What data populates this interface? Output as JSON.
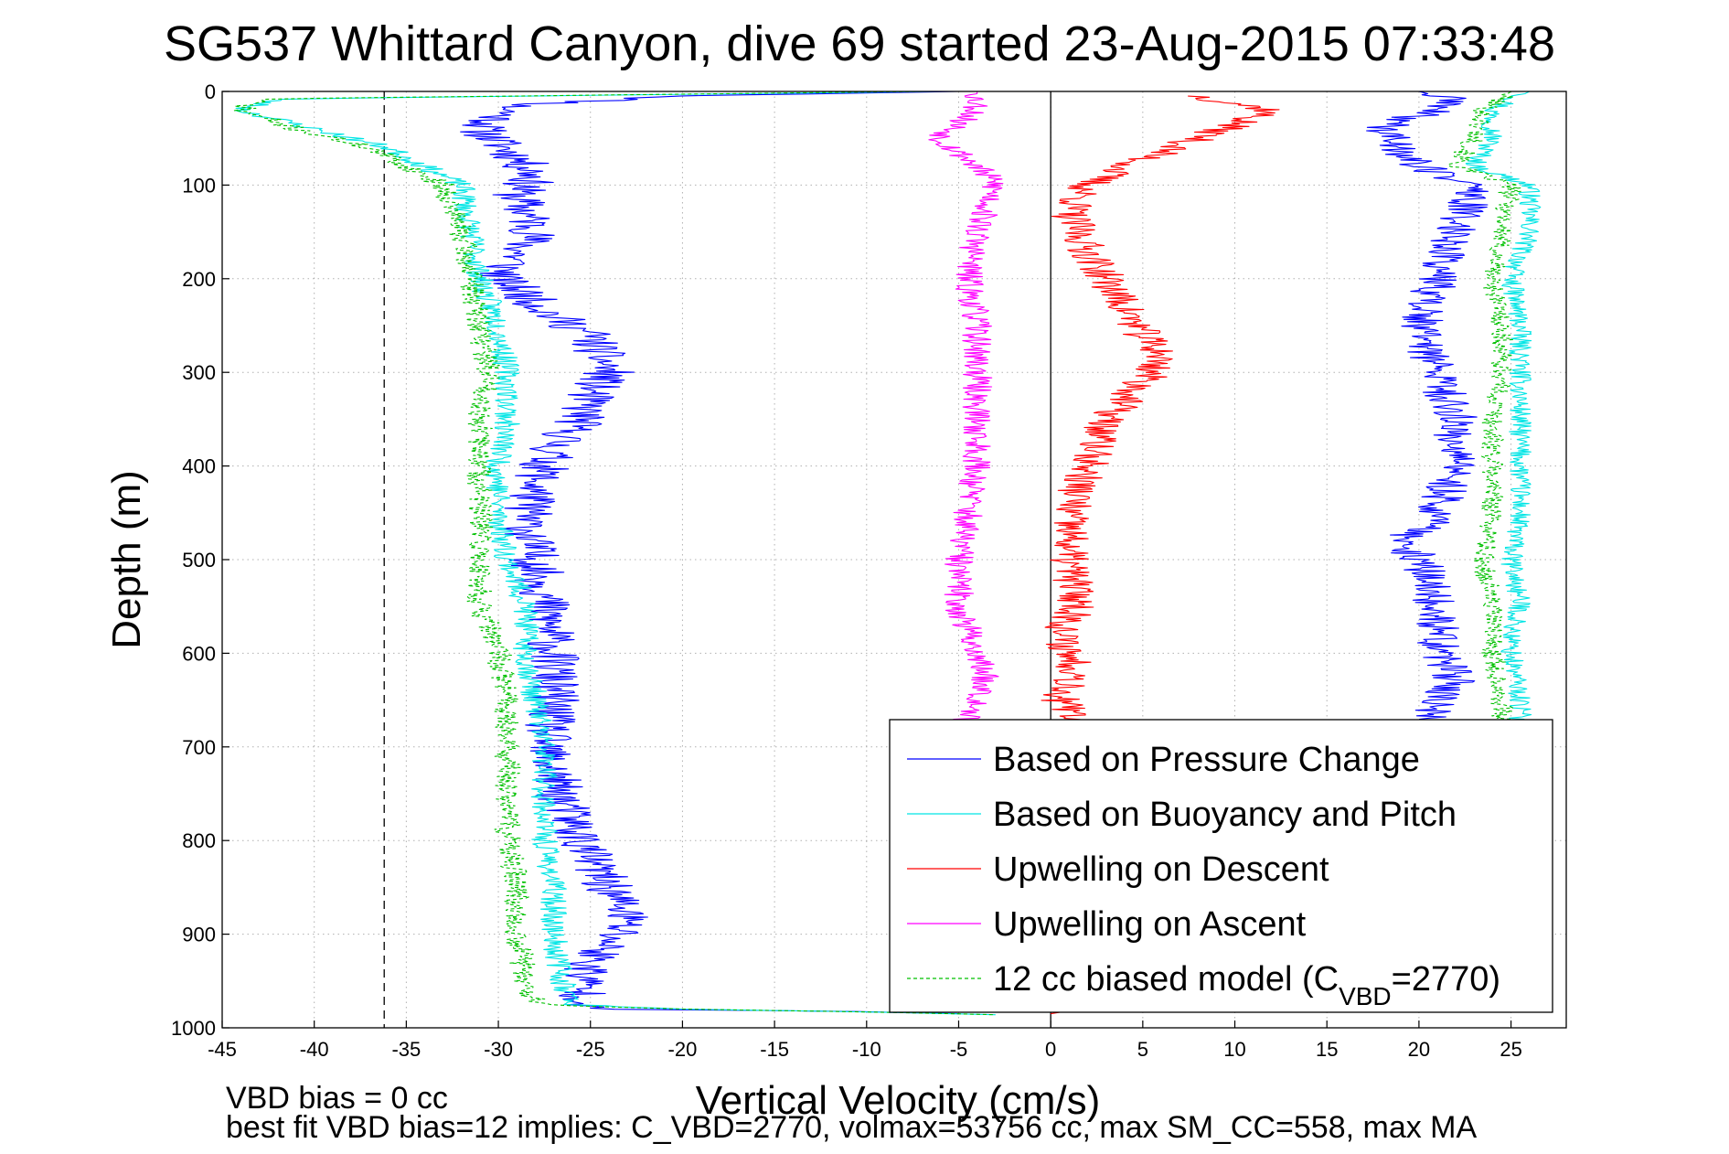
{
  "chart_data": {
    "type": "line",
    "title": "SG537 Whittard Canyon, dive 69 started 23-Aug-2015 07:33:48",
    "xlabel": "Vertical Velocity (cm/s)",
    "ylabel": "Depth (m)",
    "xlim": [
      -45,
      28
    ],
    "ylim": [
      0,
      1000
    ],
    "y_reversed": true,
    "grid": true,
    "xticks": [
      -45,
      -40,
      -35,
      -30,
      -25,
      -20,
      -15,
      -10,
      -5,
      0,
      5,
      10,
      15,
      20,
      25
    ],
    "yticks": [
      0,
      100,
      200,
      300,
      400,
      500,
      600,
      700,
      800,
      900,
      1000
    ],
    "reference_lines": [
      {
        "orientation": "vertical",
        "x": 0,
        "style": "solid",
        "color": "#000000"
      },
      {
        "orientation": "vertical",
        "x": -36.2,
        "style": "dashed",
        "color": "#000000"
      }
    ],
    "legend_position": "bottom-right",
    "series": [
      {
        "name": "Based on Pressure Change",
        "color": "#0000ff",
        "style": "solid",
        "noise": 1.4,
        "seed": 11,
        "x": [
          -5,
          -20,
          -29,
          -31,
          -29,
          -28,
          -29,
          -28,
          -30,
          -29,
          -27,
          -25,
          -24,
          -25,
          -25.5,
          -27,
          -28,
          -28.5,
          -28,
          -27.5,
          -27,
          -27,
          -27.5,
          -26.5,
          -25.5,
          -25,
          -24,
          -23,
          -23.5,
          -25,
          -25.5,
          -25,
          -25,
          -12,
          -5
        ],
        "y": [
          0,
          5,
          15,
          40,
          70,
          90,
          110,
          150,
          200,
          210,
          240,
          260,
          300,
          320,
          350,
          380,
          420,
          460,
          500,
          540,
          600,
          650,
          700,
          760,
          800,
          820,
          850,
          880,
          900,
          930,
          960,
          975,
          980,
          982,
          985
        ]
      },
      {
        "name": "Based on Buoyancy and Pitch",
        "color": "#00e5e5",
        "style": "solid",
        "noise": 0.7,
        "seed": 23,
        "x": [
          -6,
          -42,
          -44,
          -40,
          -36,
          -34,
          -32,
          -31.5,
          -31,
          -30,
          -29.5,
          -29.5,
          -30,
          -30,
          -29.5,
          -28.5,
          -28.5,
          -28,
          -27.5,
          -27.5,
          -27.5,
          -27,
          -27,
          -26.5,
          -26,
          -20,
          -10,
          -3
        ],
        "y": [
          0,
          8,
          20,
          40,
          60,
          80,
          100,
          150,
          200,
          250,
          300,
          350,
          400,
          450,
          500,
          550,
          600,
          650,
          700,
          750,
          800,
          850,
          900,
          950,
          975,
          980,
          983,
          986
        ]
      },
      {
        "name": "Upwelling on Descent",
        "color": "#ff0000",
        "style": "solid",
        "noise": 1.1,
        "seed": 37,
        "x": [
          8,
          12,
          8,
          4,
          2,
          1,
          2,
          3,
          4,
          5,
          6,
          5.5,
          3,
          2,
          1,
          1,
          1.5,
          0.5,
          1.5,
          0.5,
          1.5,
          1.5,
          0
        ],
        "y": [
          5,
          20,
          50,
          80,
          100,
          130,
          170,
          200,
          230,
          260,
          280,
          300,
          350,
          400,
          450,
          500,
          550,
          580,
          620,
          650,
          680,
          980,
          985
        ]
      },
      {
        "name": "Upwelling on Ascent",
        "color": "#ff00ff",
        "style": "solid",
        "noise": 0.8,
        "seed": 53,
        "x": [
          -4,
          -4,
          -6,
          -4,
          -3,
          -4,
          -4.5,
          -4,
          -4,
          -4,
          -4,
          -4.5,
          -5,
          -5,
          -4,
          -3.5,
          -4,
          -5
        ],
        "y": [
          0,
          20,
          50,
          80,
          100,
          150,
          200,
          250,
          300,
          350,
          400,
          450,
          500,
          550,
          600,
          630,
          660,
          680
        ]
      },
      {
        "name": "12 cc biased model (C_VBD=2770)",
        "color": "#00c000",
        "style": "dashed",
        "noise": 0.7,
        "seed": 71,
        "x": [
          -7,
          -43,
          -44,
          -41,
          -37,
          -35,
          -33,
          -32,
          -31.5,
          -31,
          -30.5,
          -31,
          -31,
          -31,
          -31,
          -31,
          -30,
          -29.5,
          -29.5,
          -29.5,
          -29.5,
          -29,
          -29,
          -28.5,
          -28,
          -20,
          -10,
          -3
        ],
        "y": [
          0,
          8,
          20,
          40,
          60,
          80,
          100,
          150,
          200,
          250,
          300,
          350,
          400,
          450,
          500,
          550,
          600,
          650,
          700,
          750,
          800,
          850,
          900,
          950,
          975,
          980,
          983,
          986
        ]
      },
      {
        "name": "",
        "color": "#0000ff",
        "style": "solid",
        "noise": 1.2,
        "seed": 89,
        "x": [
          20,
          22,
          18,
          20,
          23,
          22,
          21,
          20,
          21,
          22,
          22,
          21,
          20,
          19,
          20,
          21,
          21,
          22,
          20.5,
          21
        ],
        "y": [
          0,
          10,
          40,
          80,
          100,
          150,
          200,
          250,
          300,
          350,
          400,
          450,
          470,
          480,
          500,
          550,
          600,
          630,
          660,
          680
        ]
      },
      {
        "name": "",
        "color": "#00e5e5",
        "style": "solid",
        "noise": 0.6,
        "seed": 97,
        "x": [
          26,
          24,
          24,
          23,
          26,
          26,
          25,
          25.5,
          25.5,
          25.5,
          25.5,
          25.5,
          25,
          25.5,
          25,
          25,
          25.5,
          25.5
        ],
        "y": [
          0,
          20,
          50,
          80,
          100,
          150,
          200,
          250,
          300,
          350,
          400,
          450,
          500,
          550,
          580,
          600,
          650,
          680
        ]
      },
      {
        "name": "",
        "color": "#00c000",
        "style": "dashed",
        "noise": 0.6,
        "seed": 101,
        "x": [
          25,
          23.5,
          23,
          22,
          25,
          24.5,
          24,
          24.5,
          24.5,
          24,
          24,
          24,
          23.5,
          24,
          24,
          24,
          24.5,
          24.5
        ],
        "y": [
          0,
          20,
          50,
          80,
          100,
          150,
          200,
          250,
          300,
          350,
          400,
          450,
          500,
          550,
          580,
          600,
          650,
          680
        ]
      }
    ],
    "annotations": [
      "VBD bias = 0 cc",
      "best fit VBD bias=12 implies: C_VBD=2770, volmax=53756 cc, max SM_CC=558, max MA"
    ]
  }
}
